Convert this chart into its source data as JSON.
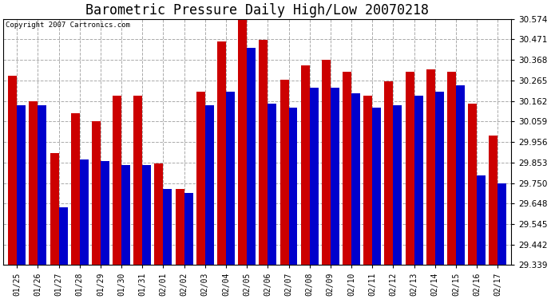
{
  "title": "Barometric Pressure Daily High/Low 20070218",
  "copyright": "Copyright 2007 Cartronics.com",
  "dates": [
    "01/25",
    "01/26",
    "01/27",
    "01/28",
    "01/29",
    "01/30",
    "01/31",
    "02/01",
    "02/02",
    "02/03",
    "02/04",
    "02/05",
    "02/06",
    "02/07",
    "02/08",
    "02/09",
    "02/10",
    "02/11",
    "02/12",
    "02/13",
    "02/14",
    "02/15",
    "02/16",
    "02/17"
  ],
  "highs": [
    30.29,
    30.162,
    29.9,
    30.1,
    30.06,
    30.19,
    30.19,
    29.85,
    29.72,
    30.21,
    30.46,
    30.57,
    30.47,
    30.27,
    30.34,
    30.37,
    30.31,
    30.19,
    30.26,
    30.31,
    30.32,
    30.31,
    30.15,
    29.99
  ],
  "lows": [
    30.14,
    30.14,
    29.63,
    29.87,
    29.86,
    29.84,
    29.84,
    29.72,
    29.7,
    30.14,
    30.21,
    30.43,
    30.15,
    30.13,
    30.23,
    30.23,
    30.2,
    30.13,
    30.14,
    30.19,
    30.21,
    30.24,
    29.79,
    29.75
  ],
  "high_color": "#cc0000",
  "low_color": "#0000cc",
  "bg_color": "#ffffff",
  "plot_bg_color": "#ffffff",
  "grid_color": "#aaaaaa",
  "title_fontsize": 12,
  "ymin": 29.339,
  "ymax": 30.574,
  "ytick_values": [
    29.339,
    29.442,
    29.545,
    29.648,
    29.75,
    29.853,
    29.956,
    30.059,
    30.162,
    30.265,
    30.368,
    30.471,
    30.574
  ]
}
